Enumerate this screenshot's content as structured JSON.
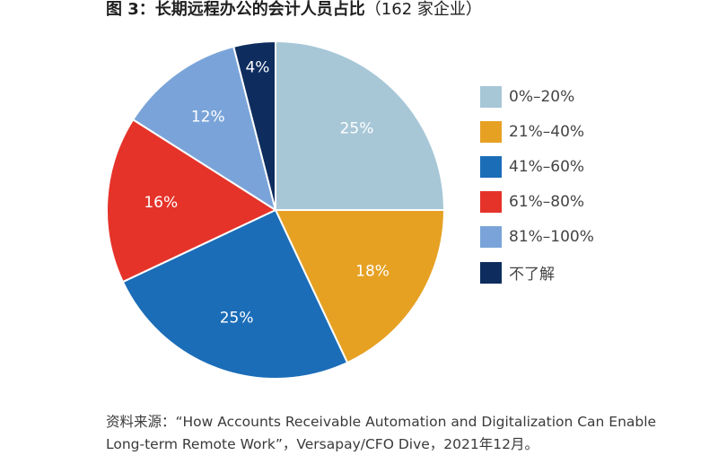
{
  "header": {
    "title_main": "图 3：长期远程办公的会计人员占比",
    "title_sub": "（162 家企业）"
  },
  "chart_data": {
    "type": "pie",
    "categories": [
      "0%–20%",
      "21%–40%",
      "41%–60%",
      "61%–80%",
      "81%–100%",
      "不了解"
    ],
    "values": [
      25,
      18,
      25,
      16,
      12,
      4
    ],
    "value_labels": [
      "25%",
      "18%",
      "25%",
      "16%",
      "12%",
      "4%"
    ],
    "colors": [
      "#a7c7d7",
      "#e6a123",
      "#1b6db8",
      "#e5332a",
      "#7aa4d9",
      "#0e2d5e"
    ],
    "label_colors": [
      "#ffffff",
      "#ffffff",
      "#ffffff",
      "#ffffff",
      "#ffffff",
      "#ffffff"
    ],
    "legend_position": "right"
  },
  "footer": {
    "source": "资料来源：“How Accounts Receivable Automation and Digitalization Can Enable Long-term Remote Work”，Versapay/CFO Dive，2021年12月。"
  }
}
